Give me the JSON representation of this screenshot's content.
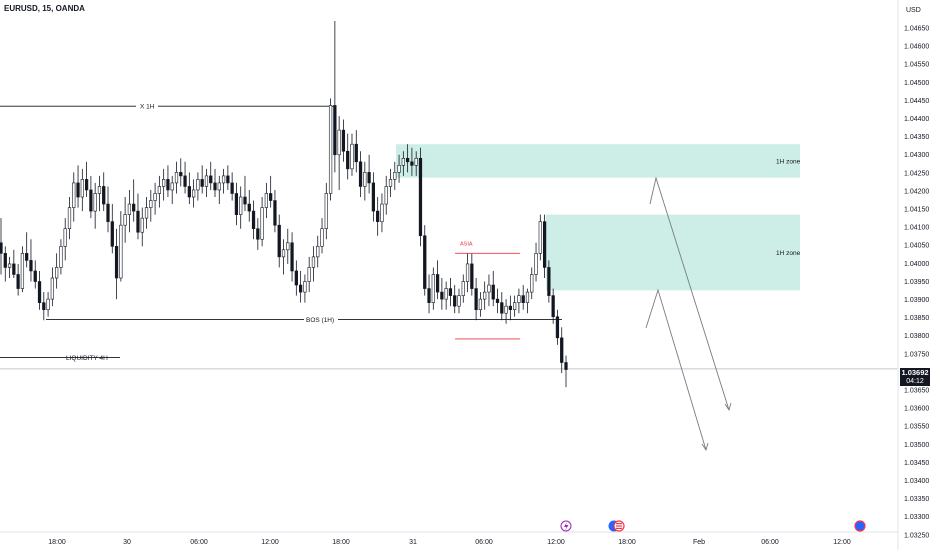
{
  "header": {
    "symbol_line": "EURUSD, 15, OANDA",
    "currency": "USD"
  },
  "price_axis": {
    "ticks": [
      "1.04650",
      "1.04600",
      "1.04550",
      "1.04500",
      "1.04450",
      "1.04400",
      "1.04350",
      "1.04300",
      "1.04250",
      "1.04200",
      "1.04150",
      "1.04100",
      "1.04050",
      "1.04000",
      "1.03950",
      "1.03900",
      "1.03850",
      "1.03800",
      "1.03750",
      "1.03650",
      "1.03600",
      "1.03550",
      "1.03500",
      "1.03450",
      "1.03400",
      "1.03350",
      "1.03300",
      "1.03250"
    ],
    "current_price": "1.03692",
    "countdown": "04:12"
  },
  "time_axis": {
    "ticks": [
      "18:00",
      "30",
      "06:00",
      "12:00",
      "18:00",
      "31",
      "06:00",
      "12:00",
      "18:00",
      "Feb",
      "06:00",
      "12:00"
    ]
  },
  "annotations": {
    "x1h": "X 1H",
    "bos": "BOS (1H)",
    "liquidity": "LIQUIDITY 4H",
    "asia": "ASIA",
    "zone_upper": "1H zone",
    "zone_lower": "1H zone"
  },
  "colors": {
    "zone_fill": "#cdeee6",
    "asia_red": "#f23645",
    "candle": "#131722",
    "projection": "#787b86"
  },
  "chart_data": {
    "type": "candlestick",
    "symbol": "EURUSD",
    "timeframe": "15",
    "broker": "OANDA",
    "y_range": [
      1.0322,
      1.0469
    ],
    "levels": [
      {
        "name": "X 1H",
        "price": 1.04438
      },
      {
        "name": "BOS (1H)",
        "price": 1.03832
      },
      {
        "name": "LIQUIDITY 4H",
        "price": 1.03724
      },
      {
        "name": "current",
        "price": 1.03692
      }
    ],
    "zones": [
      {
        "label": "1H zone",
        "top": 1.0433,
        "bottom": 1.04235
      },
      {
        "label": "1H zone",
        "top": 1.0413,
        "bottom": 1.03915
      }
    ],
    "asia_range": {
      "label": "ASIA",
      "high": 1.0402,
      "low": 1.03777
    },
    "candles": [
      [
        1.0405,
        1.0412,
        1.0396,
        1.0402
      ],
      [
        1.0402,
        1.0404,
        1.0394,
        1.0398
      ],
      [
        1.0398,
        1.0401,
        1.0395,
        1.0399
      ],
      [
        1.0399,
        1.0403,
        1.0395,
        1.0396
      ],
      [
        1.0396,
        1.0399,
        1.039,
        1.0392
      ],
      [
        1.0392,
        1.0404,
        1.0391,
        1.0402
      ],
      [
        1.0402,
        1.0408,
        1.0398,
        1.04
      ],
      [
        1.04,
        1.0406,
        1.0394,
        1.0397
      ],
      [
        1.0397,
        1.04,
        1.0392,
        1.0394
      ],
      [
        1.0394,
        1.0397,
        1.0386,
        1.0388
      ],
      [
        1.0388,
        1.0391,
        1.0383,
        1.0386
      ],
      [
        1.0386,
        1.0391,
        1.0384,
        1.0389
      ],
      [
        1.0389,
        1.0398,
        1.0387,
        1.0395
      ],
      [
        1.0395,
        1.0402,
        1.0392,
        1.0398
      ],
      [
        1.0398,
        1.0406,
        1.0396,
        1.0404
      ],
      [
        1.0404,
        1.0412,
        1.04,
        1.0409
      ],
      [
        1.0409,
        1.0418,
        1.0406,
        1.0415
      ],
      [
        1.0415,
        1.0425,
        1.0411,
        1.0422
      ],
      [
        1.0422,
        1.0427,
        1.0415,
        1.0418
      ],
      [
        1.0418,
        1.0426,
        1.0414,
        1.0423
      ],
      [
        1.0423,
        1.0428,
        1.0418,
        1.042
      ],
      [
        1.042,
        1.0424,
        1.0412,
        1.0414
      ],
      [
        1.0414,
        1.0422,
        1.0409,
        1.0419
      ],
      [
        1.0419,
        1.0424,
        1.0414,
        1.0421
      ],
      [
        1.0421,
        1.0425,
        1.0414,
        1.0416
      ],
      [
        1.0416,
        1.0421,
        1.0408,
        1.0411
      ],
      [
        1.0411,
        1.0416,
        1.0402,
        1.0404
      ],
      [
        1.0404,
        1.0409,
        1.0389,
        1.0395
      ],
      [
        1.0395,
        1.0414,
        1.0394,
        1.041
      ],
      [
        1.041,
        1.0418,
        1.0405,
        1.0413
      ],
      [
        1.0413,
        1.042,
        1.0408,
        1.0416
      ],
      [
        1.0416,
        1.0423,
        1.0411,
        1.0414
      ],
      [
        1.0414,
        1.0419,
        1.0406,
        1.0408
      ],
      [
        1.0408,
        1.0415,
        1.0404,
        1.0412
      ],
      [
        1.0412,
        1.0418,
        1.0409,
        1.0415
      ],
      [
        1.0415,
        1.042,
        1.0411,
        1.0417
      ],
      [
        1.0417,
        1.0422,
        1.0413,
        1.0419
      ],
      [
        1.0419,
        1.0424,
        1.0415,
        1.0421
      ],
      [
        1.0421,
        1.0426,
        1.0417,
        1.0423
      ],
      [
        1.0423,
        1.0427,
        1.0418,
        1.042
      ],
      [
        1.042,
        1.0424,
        1.0416,
        1.0422
      ],
      [
        1.0422,
        1.0428,
        1.0419,
        1.0425
      ],
      [
        1.0425,
        1.0429,
        1.0421,
        1.0424
      ],
      [
        1.0424,
        1.0428,
        1.0419,
        1.0421
      ],
      [
        1.0421,
        1.0425,
        1.0416,
        1.0418
      ],
      [
        1.0418,
        1.0423,
        1.0415,
        1.042
      ],
      [
        1.042,
        1.0425,
        1.0417,
        1.0423
      ],
      [
        1.0423,
        1.0427,
        1.0419,
        1.0421
      ],
      [
        1.0421,
        1.0426,
        1.0418,
        1.0424
      ],
      [
        1.0424,
        1.0428,
        1.042,
        1.0422
      ],
      [
        1.0422,
        1.0426,
        1.0418,
        1.042
      ],
      [
        1.042,
        1.0424,
        1.0416,
        1.0422
      ],
      [
        1.0422,
        1.0426,
        1.0419,
        1.0424
      ],
      [
        1.0424,
        1.0427,
        1.042,
        1.0422
      ],
      [
        1.0422,
        1.0425,
        1.0417,
        1.0419
      ],
      [
        1.0419,
        1.0422,
        1.041,
        1.0413
      ],
      [
        1.0413,
        1.0421,
        1.0409,
        1.0418
      ],
      [
        1.0418,
        1.0424,
        1.0414,
        1.0416
      ],
      [
        1.0416,
        1.042,
        1.0411,
        1.0414
      ],
      [
        1.0414,
        1.0417,
        1.0406,
        1.0409
      ],
      [
        1.0409,
        1.0412,
        1.0403,
        1.0406
      ],
      [
        1.0406,
        1.0418,
        1.0404,
        1.0415
      ],
      [
        1.0415,
        1.0422,
        1.0412,
        1.0419
      ],
      [
        1.0419,
        1.0424,
        1.0415,
        1.0417
      ],
      [
        1.0417,
        1.042,
        1.0408,
        1.041
      ],
      [
        1.041,
        1.0413,
        1.0398,
        1.0401
      ],
      [
        1.0401,
        1.0406,
        1.0396,
        1.0403
      ],
      [
        1.0403,
        1.0409,
        1.0399,
        1.0405
      ],
      [
        1.0405,
        1.0408,
        1.0394,
        1.0397
      ],
      [
        1.0397,
        1.04,
        1.039,
        1.0393
      ],
      [
        1.0393,
        1.0397,
        1.0388,
        1.0391
      ],
      [
        1.0391,
        1.0396,
        1.0388,
        1.0394
      ],
      [
        1.0394,
        1.0401,
        1.0391,
        1.0398
      ],
      [
        1.0398,
        1.0404,
        1.0394,
        1.0401
      ],
      [
        1.0401,
        1.0407,
        1.0398,
        1.0404
      ],
      [
        1.0404,
        1.0412,
        1.0402,
        1.0409
      ],
      [
        1.0409,
        1.0422,
        1.0406,
        1.0419
      ],
      [
        1.0419,
        1.0446,
        1.0417,
        1.0444
      ],
      [
        1.0444,
        1.0468,
        1.0425,
        1.043
      ],
      [
        1.043,
        1.0441,
        1.042,
        1.0437
      ],
      [
        1.0437,
        1.044,
        1.0428,
        1.0431
      ],
      [
        1.0431,
        1.0436,
        1.0423,
        1.0426
      ],
      [
        1.0426,
        1.0436,
        1.0424,
        1.0433
      ],
      [
        1.0433,
        1.0437,
        1.0425,
        1.0428
      ],
      [
        1.0428,
        1.0431,
        1.0418,
        1.0421
      ],
      [
        1.0421,
        1.0428,
        1.0417,
        1.0425
      ],
      [
        1.0425,
        1.043,
        1.0419,
        1.0422
      ],
      [
        1.0422,
        1.0425,
        1.0411,
        1.0414
      ],
      [
        1.0414,
        1.0418,
        1.0407,
        1.0411
      ],
      [
        1.0411,
        1.0419,
        1.0408,
        1.0416
      ],
      [
        1.0416,
        1.0424,
        1.0413,
        1.0421
      ],
      [
        1.0421,
        1.0426,
        1.0418,
        1.0423
      ],
      [
        1.0423,
        1.0428,
        1.042,
        1.0425
      ],
      [
        1.0425,
        1.043,
        1.0422,
        1.0427
      ],
      [
        1.0427,
        1.0431,
        1.0424,
        1.0429
      ],
      [
        1.0429,
        1.0433,
        1.0425,
        1.0428
      ],
      [
        1.0428,
        1.0432,
        1.0424,
        1.0427
      ],
      [
        1.0427,
        1.0431,
        1.0424,
        1.0429
      ],
      [
        1.0429,
        1.0432,
        1.0404,
        1.0407
      ],
      [
        1.0407,
        1.041,
        1.039,
        1.0392
      ],
      [
        1.0392,
        1.0396,
        1.0385,
        1.0388
      ],
      [
        1.0388,
        1.0398,
        1.0386,
        1.0396
      ],
      [
        1.0396,
        1.04,
        1.0389,
        1.0391
      ],
      [
        1.0391,
        1.0395,
        1.0386,
        1.0389
      ],
      [
        1.0389,
        1.0394,
        1.0386,
        1.0392
      ],
      [
        1.0392,
        1.0395,
        1.0387,
        1.039
      ],
      [
        1.039,
        1.0393,
        1.0385,
        1.0387
      ],
      [
        1.0387,
        1.0392,
        1.0385,
        1.039
      ],
      [
        1.039,
        1.0396,
        1.0388,
        1.0394
      ],
      [
        1.0394,
        1.0402,
        1.0391,
        1.0399
      ],
      [
        1.0399,
        1.0402,
        1.039,
        1.0392
      ],
      [
        1.0392,
        1.0395,
        1.0383,
        1.0386
      ],
      [
        1.0386,
        1.0391,
        1.0384,
        1.0389
      ],
      [
        1.0389,
        1.0394,
        1.0386,
        1.0391
      ],
      [
        1.0391,
        1.0396,
        1.0387,
        1.0393
      ],
      [
        1.0393,
        1.0397,
        1.0387,
        1.0389
      ],
      [
        1.0389,
        1.0392,
        1.0385,
        1.0388
      ],
      [
        1.0388,
        1.0391,
        1.0383,
        1.0385
      ],
      [
        1.0385,
        1.0389,
        1.0382,
        1.0387
      ],
      [
        1.0387,
        1.039,
        1.0383,
        1.0386
      ],
      [
        1.0386,
        1.039,
        1.0384,
        1.0388
      ],
      [
        1.0388,
        1.0392,
        1.0385,
        1.039
      ],
      [
        1.039,
        1.0393,
        1.0386,
        1.0388
      ],
      [
        1.0388,
        1.0392,
        1.0385,
        1.0391
      ],
      [
        1.0391,
        1.0398,
        1.0389,
        1.0396
      ],
      [
        1.0396,
        1.0405,
        1.0394,
        1.0402
      ],
      [
        1.0402,
        1.0413,
        1.04,
        1.0411
      ],
      [
        1.0411,
        1.0413,
        1.0395,
        1.0398
      ],
      [
        1.0398,
        1.04,
        1.0388,
        1.039
      ],
      [
        1.039,
        1.0392,
        1.0382,
        1.0384
      ],
      [
        1.0384,
        1.0386,
        1.0376,
        1.0378
      ],
      [
        1.0378,
        1.0381,
        1.0368,
        1.0371
      ],
      [
        1.0371,
        1.0373,
        1.0364,
        1.0369
      ]
    ]
  }
}
